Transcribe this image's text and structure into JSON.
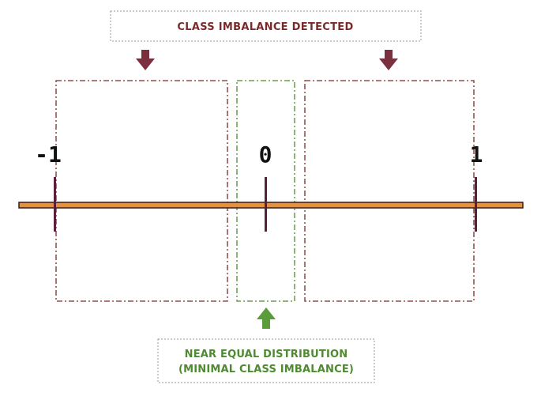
{
  "top_label": "CLASS IMBALANCE DETECTED",
  "bottom_label": {
    "line1": "NEAR EQUAL DISTRIBUTION",
    "line2": "(MINIMAL CLASS IMBALANCE)"
  },
  "ticks": [
    {
      "value": -1,
      "label": "-1"
    },
    {
      "value": 0,
      "label": "0"
    },
    {
      "value": 1,
      "label": "1"
    }
  ],
  "regions": [
    {
      "name": "imbalance-region-left",
      "from": -1,
      "to": -0.1,
      "kind": "imbalance"
    },
    {
      "name": "balanced-region-center",
      "from": -0.1,
      "to": 0.1,
      "kind": "balanced"
    },
    {
      "name": "imbalance-region-right",
      "from": 0.1,
      "to": 1,
      "kind": "imbalance"
    }
  ],
  "colors": {
    "imbalance": "#7b2a2a",
    "balanced": "#4e8a2f",
    "axis_fill": "#e8903a",
    "axis_stroke": "#3a1a14",
    "tick": "#5a1f3a",
    "arrow_down": "#7b3040",
    "arrow_up": "#5a9b3a",
    "label_box_border": "#999999"
  }
}
